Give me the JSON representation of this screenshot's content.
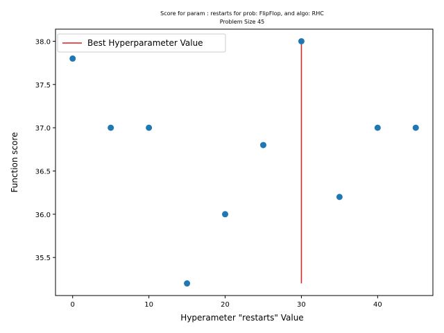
{
  "chart_data": {
    "type": "scatter",
    "title": "Score for param : restarts for prob: FlipFlop, and algo: RHC",
    "subtitle": "Problem Size 45",
    "xlabel": "Hyperameter \"restarts\" Value",
    "ylabel": "Function score",
    "xlim": [
      -2.25,
      47.25
    ],
    "ylim": [
      35.06,
      38.14
    ],
    "xticks": [
      0,
      10,
      20,
      30,
      40
    ],
    "yticks": [
      35.5,
      36.0,
      36.5,
      37.0,
      37.5,
      38.0
    ],
    "xtick_labels": [
      "0",
      "10",
      "20",
      "30",
      "40"
    ],
    "ytick_labels": [
      "35.5",
      "36.0",
      "36.5",
      "37.0",
      "37.5",
      "38.0"
    ],
    "grid": false,
    "legend_position": "top-left",
    "series": [
      {
        "type": "scatter",
        "color": "#1f77b4",
        "x": [
          0,
          5,
          10,
          15,
          20,
          25,
          30,
          35,
          40,
          45
        ],
        "y": [
          37.8,
          37.0,
          37.0,
          35.2,
          36.0,
          36.8,
          38.0,
          36.2,
          37.0,
          37.0
        ]
      },
      {
        "type": "vline",
        "name": "Best Hyperparameter Value",
        "color": "#e31a1c",
        "x": 30,
        "y_range": [
          35.2,
          38.0
        ]
      }
    ]
  }
}
